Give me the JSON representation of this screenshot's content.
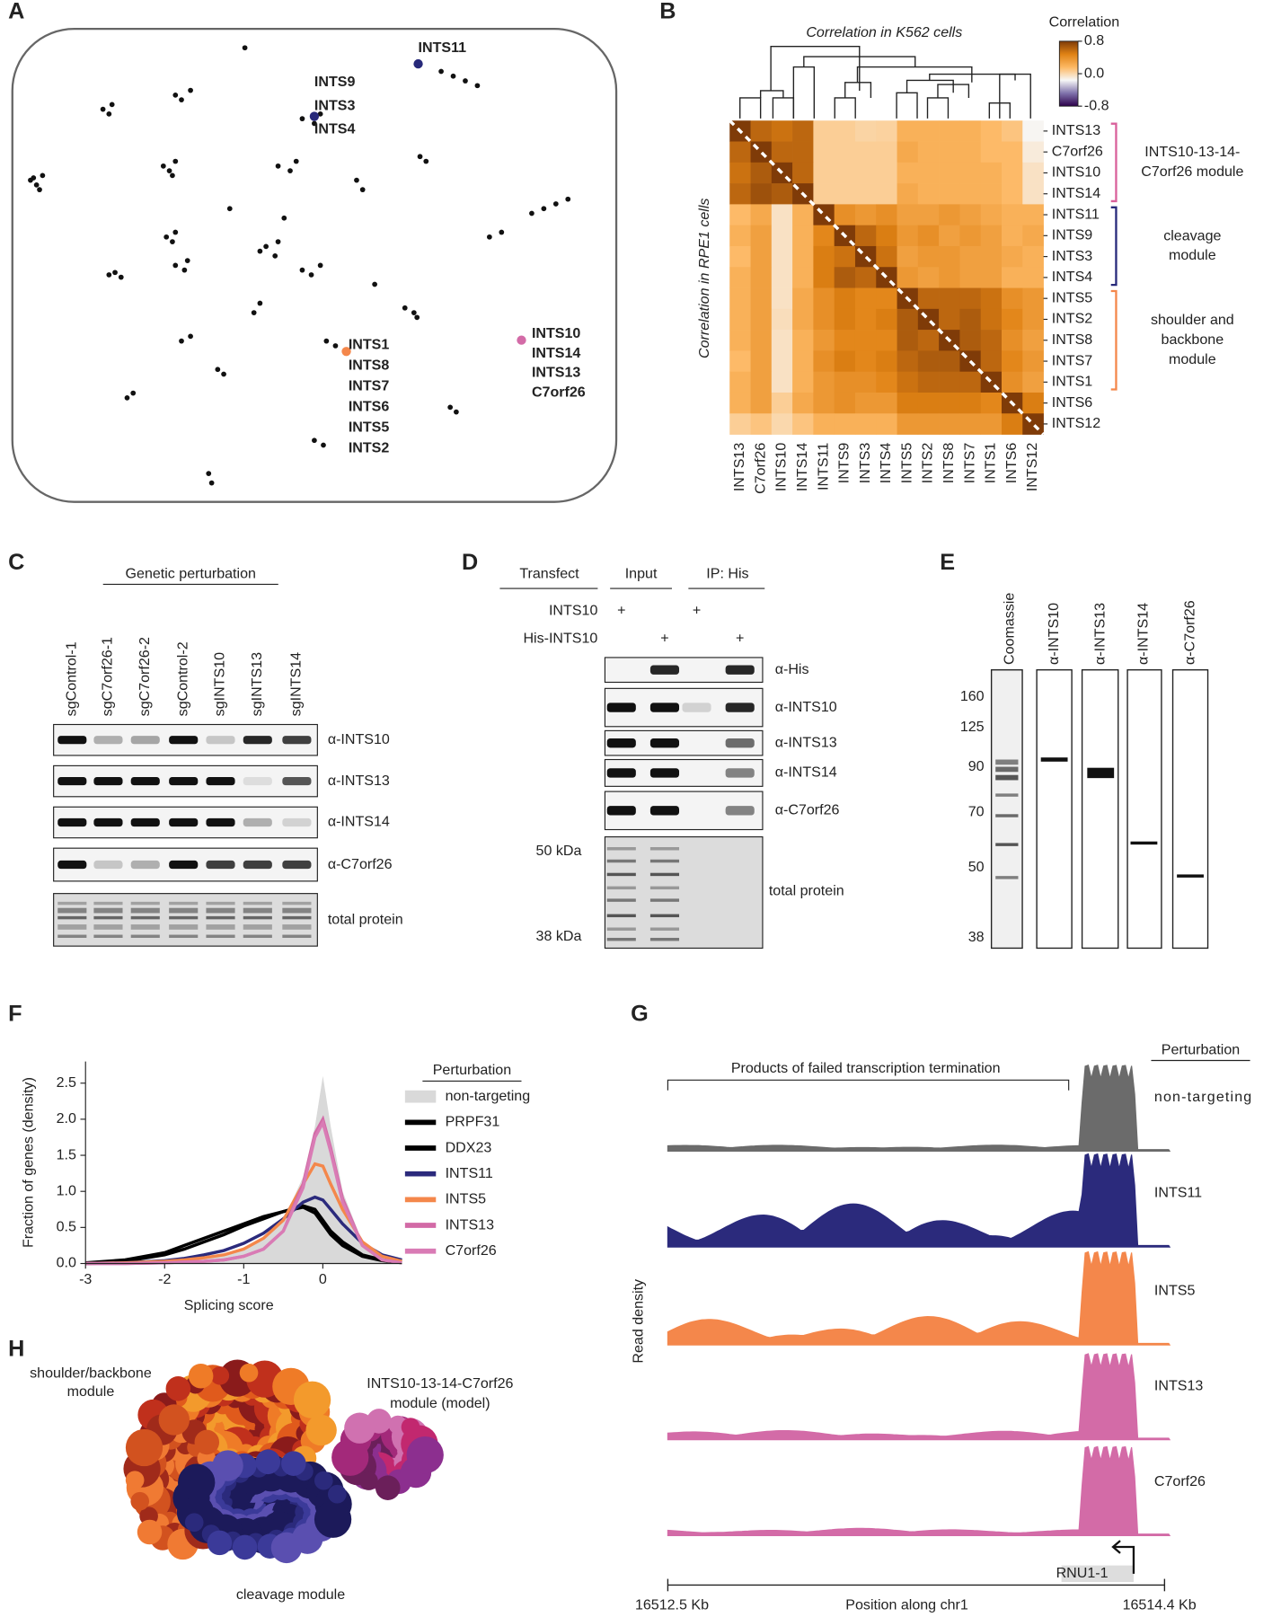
{
  "panel_labels": [
    "A",
    "B",
    "C",
    "D",
    "E",
    "F",
    "G",
    "H"
  ],
  "chart_data": [
    {
      "type": "scatter",
      "color": "#111111",
      "xlim": [
        0,
        100
      ],
      "ylim": [
        0,
        100
      ],
      "x": [
        3,
        4,
        5,
        4.5,
        3.5,
        15,
        16,
        16.5,
        27,
        28,
        29.5,
        25,
        26,
        27,
        26.5,
        25.5,
        26.5,
        27,
        27,
        28.5,
        29,
        16,
        17,
        18,
        38.5,
        48,
        50,
        51,
        44,
        46,
        47,
        41,
        42,
        43.5,
        44,
        48,
        49.5,
        51,
        40,
        41,
        52,
        53.5,
        65,
        66.5,
        67,
        71,
        73,
        75,
        77,
        67.5,
        68.5,
        86,
        88,
        90,
        92,
        79,
        81,
        72.5,
        73.5,
        50,
        51.5,
        32.5,
        33,
        34,
        35,
        19,
        20,
        28,
        29.5,
        57,
        58,
        45,
        36,
        60
      ],
      "y": [
        68,
        67,
        69,
        66,
        68.5,
        83,
        82,
        84,
        86,
        85,
        87,
        71,
        70,
        72,
        69,
        56,
        55,
        57,
        50,
        49,
        51,
        48,
        48.5,
        47.5,
        96,
        81,
        80,
        82,
        71,
        70,
        72,
        53,
        54,
        52,
        55,
        49,
        48,
        50,
        40,
        42,
        34,
        33,
        41,
        40,
        39,
        91,
        90,
        89,
        88,
        73,
        72,
        61,
        62,
        63,
        64,
        56,
        57,
        20,
        19,
        13,
        12,
        6,
        4,
        28,
        27,
        22,
        23,
        34,
        35,
        68,
        66,
        60,
        62,
        46
      ],
      "annotations": [
        {
          "x": 67.2,
          "y": 92.6,
          "color": "#27297a",
          "labels": [
            "INTS11"
          ]
        },
        {
          "x": 50,
          "y": 81.5,
          "color": "#27297a",
          "labels": [
            "INTS9",
            "INTS3",
            "INTS4"
          ]
        },
        {
          "x": 55.3,
          "y": 31.8,
          "color": "#f4874b",
          "labels": [
            "INTS1",
            "INTS8",
            "INTS7",
            "INTS6",
            "INTS5",
            "INTS2"
          ]
        },
        {
          "x": 84.3,
          "y": 34.2,
          "color": "#d36ba7",
          "labels": [
            "INTS10",
            "INTS14",
            "INTS13",
            "C7orf26"
          ]
        }
      ]
    },
    {
      "type": "heatmap",
      "title": "Correlation in K562 cells",
      "y_label": "Correlation in RPE1 cells",
      "categories": [
        "INTS13",
        "C7orf26",
        "INTS10",
        "INTS14",
        "INTS11",
        "INTS9",
        "INTS3",
        "INTS4",
        "INTS5",
        "INTS2",
        "INTS8",
        "INTS7",
        "INTS1",
        "INTS6",
        "INTS12"
      ],
      "values": [
        [
          1,
          0.6,
          0.55,
          0.6,
          0.05,
          0.05,
          0.02,
          0.03,
          0.2,
          0.2,
          0.2,
          0.2,
          0.15,
          0.1,
          -0.15
        ],
        [
          0.6,
          1,
          0.6,
          0.6,
          0.05,
          0.05,
          0.05,
          0.05,
          0.25,
          0.2,
          0.2,
          0.2,
          0.15,
          0.15,
          -0.1
        ],
        [
          0.55,
          0.65,
          1,
          0.6,
          0.05,
          0.05,
          0.05,
          0.05,
          0.2,
          0.2,
          0.2,
          0.2,
          0.2,
          0.15,
          -0.05
        ],
        [
          0.6,
          0.7,
          0.65,
          1,
          0.05,
          0.05,
          0.05,
          0.05,
          0.25,
          0.2,
          0.2,
          0.2,
          0.2,
          0.15,
          -0.05
        ],
        [
          0.15,
          0.25,
          -0.05,
          0.2,
          1,
          0.4,
          0.35,
          0.4,
          0.3,
          0.3,
          0.35,
          0.3,
          0.25,
          0.2,
          0.2
        ],
        [
          0.2,
          0.3,
          -0.05,
          0.2,
          0.45,
          1,
          0.6,
          0.5,
          0.35,
          0.4,
          0.3,
          0.35,
          0.3,
          0.2,
          0.25
        ],
        [
          0.15,
          0.3,
          -0.05,
          0.2,
          0.5,
          0.55,
          1,
          0.55,
          0.3,
          0.35,
          0.35,
          0.3,
          0.3,
          0.25,
          0.2
        ],
        [
          0.2,
          0.3,
          -0.05,
          0.2,
          0.5,
          0.65,
          0.6,
          1,
          0.35,
          0.3,
          0.35,
          0.3,
          0.3,
          0.2,
          0.2
        ],
        [
          0.2,
          0.3,
          -0.05,
          0.25,
          0.4,
          0.5,
          0.45,
          0.45,
          1,
          0.6,
          0.6,
          0.6,
          0.55,
          0.4,
          0.35
        ],
        [
          0.2,
          0.3,
          -0.03,
          0.25,
          0.4,
          0.5,
          0.45,
          0.5,
          0.65,
          1,
          0.6,
          0.65,
          0.55,
          0.45,
          0.35
        ],
        [
          0.2,
          0.3,
          -0.05,
          0.2,
          0.35,
          0.45,
          0.45,
          0.45,
          0.65,
          0.6,
          1,
          0.65,
          0.6,
          0.4,
          0.3
        ],
        [
          0.15,
          0.3,
          -0.05,
          0.2,
          0.4,
          0.5,
          0.45,
          0.5,
          0.6,
          0.65,
          0.65,
          1,
          0.6,
          0.45,
          0.35
        ],
        [
          0.2,
          0.3,
          -0.05,
          0.2,
          0.35,
          0.4,
          0.4,
          0.45,
          0.55,
          0.6,
          0.6,
          0.6,
          1,
          0.4,
          0.3
        ],
        [
          0.2,
          0.3,
          0.05,
          0.25,
          0.35,
          0.4,
          0.35,
          0.35,
          0.5,
          0.5,
          0.5,
          0.5,
          0.45,
          1,
          0.5
        ],
        [
          0.05,
          0.1,
          0,
          0.1,
          0.2,
          0.2,
          0.2,
          0.2,
          0.35,
          0.35,
          0.35,
          0.35,
          0.35,
          0.5,
          1
        ]
      ],
      "colorbar": {
        "title": "Correlation",
        "clim": [
          -0.8,
          0.8
        ],
        "ticks": [
          0.8,
          {
            "value": 0,
            "label": "0.0"
          },
          -0.8
        ],
        "colors": [
          "#2d004b",
          "#8073ac",
          "#f7f7f7",
          "#fdb863",
          "#e08214",
          "#7f3b08"
        ]
      },
      "modules": [
        {
          "lines": [
            "INTS10-13-14-",
            "C7orf26 module"
          ],
          "color": "#d9609b",
          "rows": [
            0,
            3
          ]
        },
        {
          "lines": [
            "cleavage",
            "module"
          ],
          "color": "#27297a",
          "rows": [
            4,
            7
          ]
        },
        {
          "lines": [
            "shoulder and",
            "backbone",
            "module"
          ],
          "color": "#f4874b",
          "rows": [
            8,
            12
          ]
        }
      ]
    },
    {
      "type": "line",
      "y_label": "Fraction of genes (density)",
      "x_label": "Splicing score",
      "legend_title": "Perturbation",
      "xlim": [
        -3,
        1.0
      ],
      "ylim": [
        0,
        2.8
      ],
      "xticks": [
        -3,
        -2,
        -1,
        0
      ],
      "yticks": [
        {
          "value": 0,
          "label": "0.0"
        },
        {
          "value": 0.5,
          "label": "0.5"
        },
        {
          "value": 1,
          "label": "1.0"
        },
        {
          "value": 1.5,
          "label": "1.5"
        },
        {
          "value": 2,
          "label": "2.0"
        },
        {
          "value": 2.5,
          "label": "2.5"
        }
      ],
      "x": [
        -3,
        -2.5,
        -2,
        -1.75,
        -1.5,
        -1.25,
        -1,
        -0.75,
        -0.5,
        -0.25,
        -0.1,
        0,
        0.1,
        0.25,
        0.5,
        0.75,
        1.0
      ],
      "series": [
        {
          "name": "non-targeting",
          "color": "#d9d9d9",
          "fill": true,
          "values": [
            0,
            0.01,
            0.03,
            0.05,
            0.08,
            0.12,
            0.2,
            0.35,
            0.6,
            1.2,
            1.9,
            2.6,
            1.9,
            1.0,
            0.3,
            0.08,
            0.02
          ]
        },
        {
          "name": "PRPF31",
          "color": "#000000",
          "values": [
            0,
            0.03,
            0.12,
            0.2,
            0.3,
            0.4,
            0.52,
            0.62,
            0.72,
            0.78,
            0.7,
            0.55,
            0.4,
            0.25,
            0.1,
            0.04,
            0.01
          ]
        },
        {
          "name": "DDX23",
          "color": "#000000",
          "values": [
            0.01,
            0.05,
            0.15,
            0.25,
            0.35,
            0.45,
            0.55,
            0.65,
            0.72,
            0.8,
            0.75,
            0.6,
            0.45,
            0.3,
            0.12,
            0.05,
            0.02
          ]
        },
        {
          "name": "INTS11",
          "color": "#2b2a7c",
          "values": [
            0,
            0.01,
            0.04,
            0.07,
            0.12,
            0.18,
            0.28,
            0.42,
            0.62,
            0.85,
            0.92,
            0.88,
            0.75,
            0.55,
            0.28,
            0.12,
            0.05
          ]
        },
        {
          "name": "INTS5",
          "color": "#f4874b",
          "values": [
            0,
            0.01,
            0.03,
            0.05,
            0.08,
            0.12,
            0.2,
            0.35,
            0.6,
            1.1,
            1.38,
            1.35,
            1.1,
            0.75,
            0.3,
            0.1,
            0.03
          ]
        },
        {
          "name": "INTS13",
          "color": "#d26aa6",
          "values": [
            0,
            0,
            0.01,
            0.02,
            0.03,
            0.05,
            0.1,
            0.2,
            0.45,
            1.1,
            1.8,
            2.0,
            1.6,
            0.9,
            0.25,
            0.05,
            0.01
          ]
        },
        {
          "name": "C7orf26",
          "color": "#d97bb5",
          "values": [
            0,
            0,
            0.01,
            0.02,
            0.03,
            0.05,
            0.1,
            0.2,
            0.45,
            1.05,
            1.75,
            1.95,
            1.55,
            0.85,
            0.25,
            0.05,
            0.01
          ]
        }
      ]
    }
  ],
  "panel_c": {
    "title": "Genetic perturbation",
    "lanes": [
      "sgControl-1",
      "sgC7orf26-1",
      "sgC7orf26-2",
      "sgControl-2",
      "sgINTS10",
      "sgINTS13",
      "sgINTS14"
    ],
    "rows": [
      "α-INTS10",
      "α-INTS13",
      "α-INTS14",
      "α-C7orf26",
      "total protein"
    ]
  },
  "panel_d": {
    "headers": [
      "Transfect",
      "Input",
      "IP: His"
    ],
    "conditions": [
      {
        "name": "INTS10",
        "marks": [
          "+",
          "+"
        ]
      },
      {
        "name": "His-INTS10",
        "marks": [
          "+",
          "+"
        ]
      }
    ],
    "rows": [
      "α-His",
      "α-INTS10",
      "α-INTS13",
      "α-INTS14",
      "α-C7orf26",
      "total protein"
    ],
    "markers": [
      "50 kDa",
      "38 kDa"
    ]
  },
  "panel_e": {
    "lanes": [
      "Coomassie",
      "α-INTS10",
      "α-INTS13",
      "α-INTS14",
      "α-C7orf26"
    ],
    "ladder": [
      160,
      125,
      90,
      70,
      50,
      38
    ]
  },
  "panel_g": {
    "title": "Products of failed transcription termination",
    "legend_title": "Perturbation",
    "tracks": [
      {
        "name": "non-targeting",
        "color": "#6b6b6b"
      },
      {
        "name": "INTS11",
        "color": "#2b2a7c"
      },
      {
        "name": "INTS5",
        "color": "#f4874b"
      },
      {
        "name": "INTS13",
        "color": "#d36ba7"
      },
      {
        "name": "C7orf26",
        "color": "#d36ba7"
      }
    ],
    "y_label": "Read density",
    "x_label": "Position along chr1",
    "x_start": "16512.5 Kb",
    "x_end": "16514.4 Kb",
    "gene": "RNU1-1"
  },
  "panel_h": {
    "shoulder": [
      "shoulder/backbone",
      "module"
    ],
    "insert": [
      "INTS10-13-14-C7orf26",
      "module (model)"
    ],
    "cleavage": "cleavage module"
  }
}
